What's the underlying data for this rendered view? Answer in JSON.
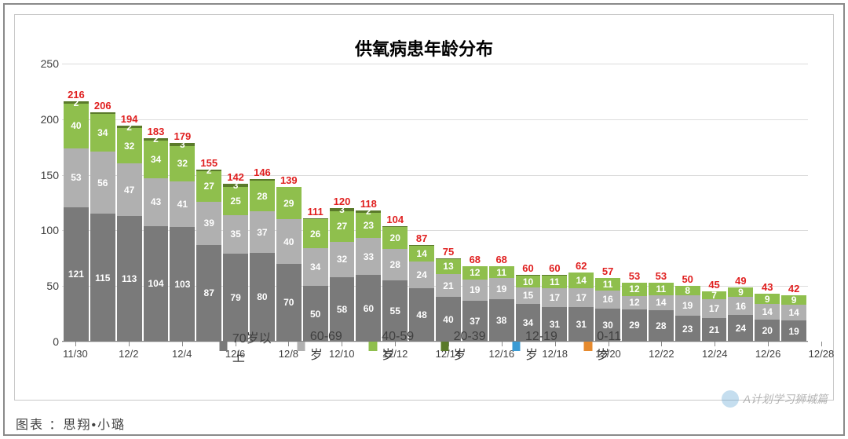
{
  "title": "供氧病患年龄分布",
  "credit": "图表 ：思翔•小璐",
  "watermark": "A计划学习狮城篇",
  "y_axis": {
    "min": 0,
    "max": 250,
    "step": 50
  },
  "x_ticks": [
    "11/30",
    "12/2",
    "12/4",
    "12/6",
    "12/8",
    "12/10",
    "12/12",
    "12/14",
    "12/16",
    "12/18",
    "12/20",
    "12/22",
    "12/24",
    "12/26",
    "12/28"
  ],
  "colors": {
    "age70": "#7a7a7a",
    "age60": "#b0b0b0",
    "age40": "#8fbf4d",
    "age20": "#5a7a2a",
    "age12": "#3a9bd4",
    "age0": "#e68a2e",
    "total": "#e02020",
    "grid": "#dcdcdc",
    "border": "#8a8a8a"
  },
  "legend": [
    {
      "swatch": "age70",
      "label": "70岁以上"
    },
    {
      "swatch": "age60",
      "label": "60-69岁"
    },
    {
      "swatch": "age40",
      "label": "40-59岁"
    },
    {
      "swatch": "age20",
      "label": "20-39岁"
    },
    {
      "swatch": "age12",
      "label": "12-19岁"
    },
    {
      "swatch": "age0",
      "label": "0-11岁"
    }
  ],
  "bars": [
    {
      "total": 216,
      "stack": [
        {
          "k": "age70",
          "v": 121,
          "lbl": "121"
        },
        {
          "k": "age60",
          "v": 53,
          "lbl": "53"
        },
        {
          "k": "age40",
          "v": 40,
          "lbl": "40"
        },
        {
          "k": "age20",
          "v": 2,
          "lbl": "2"
        }
      ]
    },
    {
      "total": 206,
      "stack": [
        {
          "k": "age70",
          "v": 115,
          "lbl": "115"
        },
        {
          "k": "age60",
          "v": 56,
          "lbl": "56"
        },
        {
          "k": "age40",
          "v": 34,
          "lbl": "34"
        },
        {
          "k": "age20",
          "v": 1,
          "lbl": ""
        }
      ]
    },
    {
      "total": 194,
      "stack": [
        {
          "k": "age70",
          "v": 113,
          "lbl": "113"
        },
        {
          "k": "age60",
          "v": 47,
          "lbl": "47"
        },
        {
          "k": "age40",
          "v": 32,
          "lbl": "32"
        },
        {
          "k": "age20",
          "v": 2,
          "lbl": "2"
        }
      ]
    },
    {
      "total": 183,
      "stack": [
        {
          "k": "age70",
          "v": 104,
          "lbl": "104"
        },
        {
          "k": "age60",
          "v": 43,
          "lbl": "43"
        },
        {
          "k": "age40",
          "v": 34,
          "lbl": "34"
        },
        {
          "k": "age20",
          "v": 2,
          "lbl": "2"
        }
      ]
    },
    {
      "total": 179,
      "stack": [
        {
          "k": "age70",
          "v": 103,
          "lbl": "103"
        },
        {
          "k": "age60",
          "v": 41,
          "lbl": "41"
        },
        {
          "k": "age40",
          "v": 32,
          "lbl": "32"
        },
        {
          "k": "age20",
          "v": 3,
          "lbl": "3"
        }
      ]
    },
    {
      "total": 155,
      "stack": [
        {
          "k": "age70",
          "v": 87,
          "lbl": "87"
        },
        {
          "k": "age60",
          "v": 39,
          "lbl": "39"
        },
        {
          "k": "age40",
          "v": 27,
          "lbl": "27"
        },
        {
          "k": "age20",
          "v": 2,
          "lbl": "2"
        }
      ]
    },
    {
      "total": 142,
      "stack": [
        {
          "k": "age70",
          "v": 79,
          "lbl": "79"
        },
        {
          "k": "age60",
          "v": 35,
          "lbl": "35"
        },
        {
          "k": "age40",
          "v": 25,
          "lbl": "25"
        },
        {
          "k": "age20",
          "v": 3,
          "lbl": "3"
        }
      ]
    },
    {
      "total": 146,
      "stack": [
        {
          "k": "age70",
          "v": 80,
          "lbl": "80"
        },
        {
          "k": "age60",
          "v": 37,
          "lbl": "37"
        },
        {
          "k": "age40",
          "v": 28,
          "lbl": "28"
        },
        {
          "k": "age20",
          "v": 1,
          "lbl": ""
        }
      ]
    },
    {
      "total": 139,
      "stack": [
        {
          "k": "age70",
          "v": 70,
          "lbl": "70"
        },
        {
          "k": "age60",
          "v": 40,
          "lbl": "40"
        },
        {
          "k": "age40",
          "v": 29,
          "lbl": "29"
        }
      ]
    },
    {
      "total": 111,
      "stack": [
        {
          "k": "age70",
          "v": 50,
          "lbl": "50"
        },
        {
          "k": "age60",
          "v": 34,
          "lbl": "34"
        },
        {
          "k": "age40",
          "v": 26,
          "lbl": "26"
        },
        {
          "k": "age20",
          "v": 1,
          "lbl": ""
        }
      ]
    },
    {
      "total": 120,
      "stack": [
        {
          "k": "age70",
          "v": 58,
          "lbl": "58"
        },
        {
          "k": "age60",
          "v": 32,
          "lbl": "32"
        },
        {
          "k": "age40",
          "v": 27,
          "lbl": "27"
        },
        {
          "k": "age20",
          "v": 3,
          "lbl": "3"
        }
      ]
    },
    {
      "total": 118,
      "stack": [
        {
          "k": "age70",
          "v": 60,
          "lbl": "60"
        },
        {
          "k": "age60",
          "v": 33,
          "lbl": "33"
        },
        {
          "k": "age40",
          "v": 23,
          "lbl": "23"
        },
        {
          "k": "age20",
          "v": 2,
          "lbl": "2"
        }
      ]
    },
    {
      "total": 104,
      "stack": [
        {
          "k": "age70",
          "v": 55,
          "lbl": "55"
        },
        {
          "k": "age60",
          "v": 28,
          "lbl": "28"
        },
        {
          "k": "age40",
          "v": 20,
          "lbl": "20"
        },
        {
          "k": "age20",
          "v": 1,
          "lbl": ""
        }
      ]
    },
    {
      "total": 87,
      "stack": [
        {
          "k": "age70",
          "v": 48,
          "lbl": "48"
        },
        {
          "k": "age60",
          "v": 24,
          "lbl": "24"
        },
        {
          "k": "age40",
          "v": 14,
          "lbl": "14"
        },
        {
          "k": "age20",
          "v": 1,
          "lbl": ""
        }
      ]
    },
    {
      "total": 75,
      "stack": [
        {
          "k": "age70",
          "v": 40,
          "lbl": "40"
        },
        {
          "k": "age60",
          "v": 21,
          "lbl": "21"
        },
        {
          "k": "age40",
          "v": 13,
          "lbl": "13"
        },
        {
          "k": "age20",
          "v": 1,
          "lbl": ""
        }
      ]
    },
    {
      "total": 68,
      "stack": [
        {
          "k": "age70",
          "v": 37,
          "lbl": "37"
        },
        {
          "k": "age60",
          "v": 19,
          "lbl": "19"
        },
        {
          "k": "age40",
          "v": 12,
          "lbl": "12"
        }
      ]
    },
    {
      "total": 68,
      "stack": [
        {
          "k": "age70",
          "v": 38,
          "lbl": "38"
        },
        {
          "k": "age60",
          "v": 19,
          "lbl": "19"
        },
        {
          "k": "age40",
          "v": 11,
          "lbl": "11"
        }
      ]
    },
    {
      "total": 60,
      "stack": [
        {
          "k": "age70",
          "v": 34,
          "lbl": "34"
        },
        {
          "k": "age60",
          "v": 15,
          "lbl": "15"
        },
        {
          "k": "age40",
          "v": 10,
          "lbl": "10"
        },
        {
          "k": "age20",
          "v": 1,
          "lbl": ""
        }
      ]
    },
    {
      "total": 60,
      "stack": [
        {
          "k": "age70",
          "v": 31,
          "lbl": "31"
        },
        {
          "k": "age60",
          "v": 17,
          "lbl": "17"
        },
        {
          "k": "age40",
          "v": 11,
          "lbl": "11"
        },
        {
          "k": "age20",
          "v": 1,
          "lbl": ""
        }
      ]
    },
    {
      "total": 62,
      "stack": [
        {
          "k": "age70",
          "v": 31,
          "lbl": "31"
        },
        {
          "k": "age60",
          "v": 17,
          "lbl": "17"
        },
        {
          "k": "age40",
          "v": 14,
          "lbl": "14"
        }
      ]
    },
    {
      "total": 57,
      "stack": [
        {
          "k": "age70",
          "v": 30,
          "lbl": "30"
        },
        {
          "k": "age60",
          "v": 16,
          "lbl": "16"
        },
        {
          "k": "age40",
          "v": 11,
          "lbl": "11"
        }
      ]
    },
    {
      "total": 53,
      "stack": [
        {
          "k": "age70",
          "v": 29,
          "lbl": "29"
        },
        {
          "k": "age60",
          "v": 12,
          "lbl": "12"
        },
        {
          "k": "age40",
          "v": 12,
          "lbl": "12"
        }
      ]
    },
    {
      "total": 53,
      "stack": [
        {
          "k": "age70",
          "v": 28,
          "lbl": "28"
        },
        {
          "k": "age60",
          "v": 14,
          "lbl": "14"
        },
        {
          "k": "age40",
          "v": 11,
          "lbl": "11"
        }
      ]
    },
    {
      "total": 50,
      "stack": [
        {
          "k": "age70",
          "v": 23,
          "lbl": "23"
        },
        {
          "k": "age60",
          "v": 19,
          "lbl": "19"
        },
        {
          "k": "age40",
          "v": 8,
          "lbl": "8"
        }
      ]
    },
    {
      "total": 45,
      "stack": [
        {
          "k": "age70",
          "v": 21,
          "lbl": "21"
        },
        {
          "k": "age60",
          "v": 17,
          "lbl": "17"
        },
        {
          "k": "age40",
          "v": 7,
          "lbl": "7"
        }
      ]
    },
    {
      "total": 49,
      "stack": [
        {
          "k": "age70",
          "v": 24,
          "lbl": "24"
        },
        {
          "k": "age60",
          "v": 16,
          "lbl": "16"
        },
        {
          "k": "age40",
          "v": 9,
          "lbl": "9"
        }
      ]
    },
    {
      "total": 43,
      "stack": [
        {
          "k": "age70",
          "v": 20,
          "lbl": "20"
        },
        {
          "k": "age60",
          "v": 14,
          "lbl": "14"
        },
        {
          "k": "age40",
          "v": 9,
          "lbl": "9"
        }
      ]
    },
    {
      "total": 42,
      "stack": [
        {
          "k": "age70",
          "v": 19,
          "lbl": "19"
        },
        {
          "k": "age60",
          "v": 14,
          "lbl": "14"
        },
        {
          "k": "age40",
          "v": 9,
          "lbl": "9"
        }
      ]
    }
  ]
}
